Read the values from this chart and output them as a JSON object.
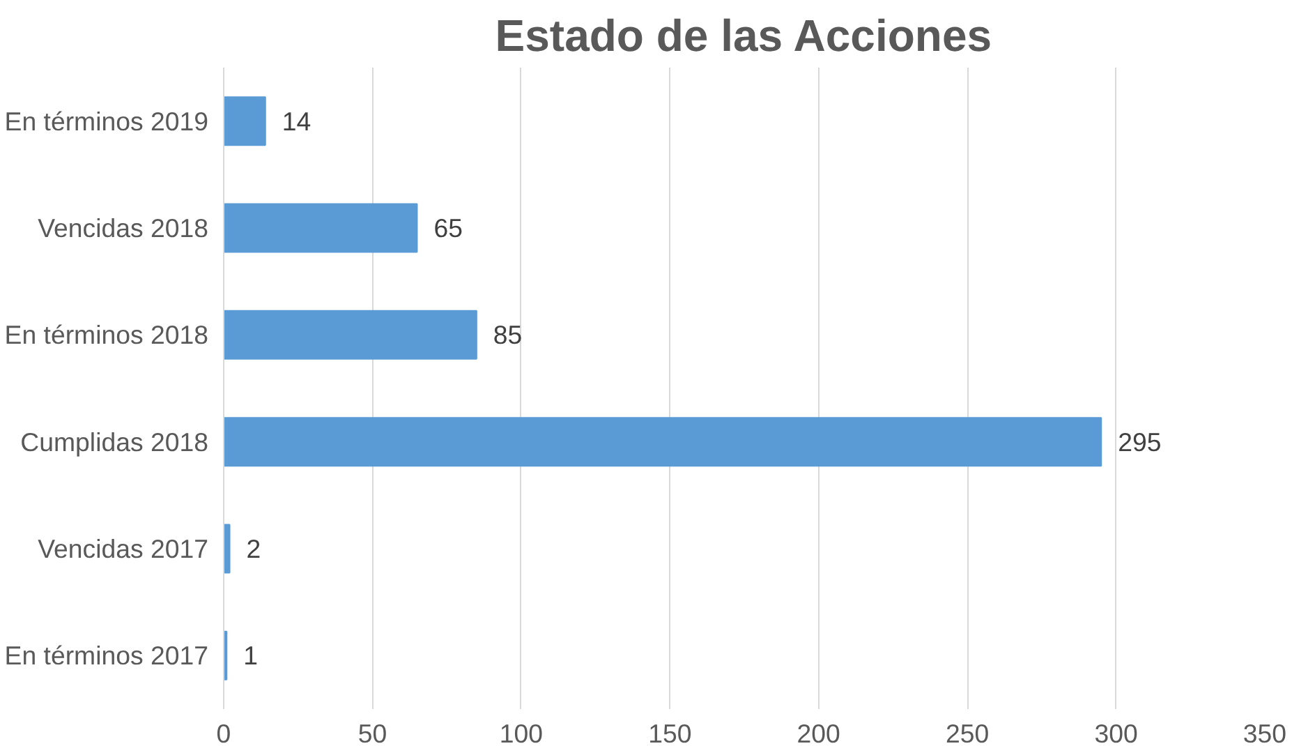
{
  "chart_data": {
    "type": "bar",
    "orientation": "horizontal",
    "title": "Estado de las Acciones",
    "categories": [
      "En términos 2019",
      "Vencidas 2018",
      "En términos 2018",
      "Cumplidas 2018",
      "Vencidas 2017",
      "En términos 2017"
    ],
    "values": [
      14,
      65,
      85,
      295,
      2,
      1
    ],
    "color": "#5b9bd5",
    "xlim": [
      0,
      350
    ],
    "xticks": [
      0,
      50,
      100,
      150,
      200,
      250,
      300,
      350
    ],
    "grid": "x",
    "data_labels": true
  }
}
